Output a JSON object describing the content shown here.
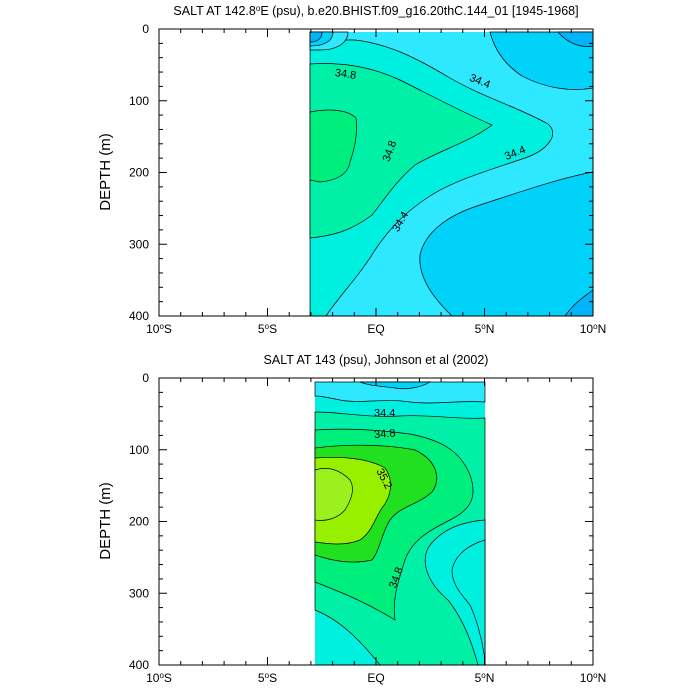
{
  "chart_data": [
    {
      "type": "contour",
      "title_main": "SALT AT 142.8",
      "title_sup": "o",
      "title_rest": "E (psu), b.e20.BHIST.f09_g16.20thC.144_01 [1945-1968]",
      "xlabel": "",
      "ylabel": "DEPTH (m)",
      "xlim": [
        -10,
        10
      ],
      "ylim": [
        0,
        400
      ],
      "y_inverted": true,
      "data_extent_x": [
        -7,
        10
      ],
      "data_extent_y": [
        5,
        400
      ],
      "x_ticks": [
        {
          "value": -10,
          "main": "10",
          "sup": "o",
          "suffix": "S"
        },
        {
          "value": -5,
          "main": "5",
          "sup": "o",
          "suffix": "S"
        },
        {
          "value": 0,
          "main": "EQ",
          "sup": "",
          "suffix": ""
        },
        {
          "value": 5,
          "main": "5",
          "sup": "o",
          "suffix": "N"
        },
        {
          "value": 10,
          "main": "10",
          "sup": "o",
          "suffix": "N"
        }
      ],
      "y_ticks": [
        {
          "value": 0,
          "label": "0"
        },
        {
          "value": 100,
          "label": "100"
        },
        {
          "value": 200,
          "label": "200"
        },
        {
          "value": 300,
          "label": "300"
        },
        {
          "value": 400,
          "label": "400"
        }
      ],
      "levels": [
        {
          "value": 34.0,
          "color": "#00B4FA"
        },
        {
          "value": 34.2,
          "color": "#00D2FA"
        },
        {
          "value": 34.4,
          "color": "#2DE8FF"
        },
        {
          "value": 34.6,
          "color": "#00F0E0"
        },
        {
          "value": 34.8,
          "color": "#00F0A8"
        },
        {
          "value": 35.0,
          "color": "#00EE7C"
        },
        {
          "value": 35.2,
          "color": "#20E020"
        }
      ],
      "contour_labels": [
        {
          "text": "34.8",
          "x": -1.4,
          "y": 62,
          "angle": 8
        },
        {
          "text": "34.4",
          "x": 4.8,
          "y": 72,
          "angle": 22
        },
        {
          "text": "34.8",
          "x": 0.6,
          "y": 170,
          "angle": -70
        },
        {
          "text": "34.4",
          "x": 6.4,
          "y": 172,
          "angle": -22
        },
        {
          "text": "34.4",
          "x": 1.1,
          "y": 268,
          "angle": -60
        }
      ]
    },
    {
      "type": "contour",
      "title_main": "SALT AT 143 (psu), Johnson et al (2002)",
      "title_sup": "",
      "title_rest": "",
      "xlabel": "",
      "ylabel": "DEPTH (m)",
      "xlim": [
        -10,
        10
      ],
      "ylim": [
        0,
        400
      ],
      "y_inverted": true,
      "data_extent_x": [
        -2.8,
        5
      ],
      "data_extent_y": [
        5,
        400
      ],
      "x_ticks": [
        {
          "value": -10,
          "main": "10",
          "sup": "o",
          "suffix": "S"
        },
        {
          "value": -5,
          "main": "5",
          "sup": "o",
          "suffix": "S"
        },
        {
          "value": 0,
          "main": "EQ",
          "sup": "",
          "suffix": ""
        },
        {
          "value": 5,
          "main": "5",
          "sup": "o",
          "suffix": "N"
        },
        {
          "value": 10,
          "main": "10",
          "sup": "o",
          "suffix": "N"
        }
      ],
      "y_ticks": [
        {
          "value": 0,
          "label": "0"
        },
        {
          "value": 100,
          "label": "100"
        },
        {
          "value": 200,
          "label": "200"
        },
        {
          "value": 300,
          "label": "300"
        },
        {
          "value": 400,
          "label": "400"
        }
      ],
      "levels": [
        {
          "value": 34.2,
          "color": "#00D2FA"
        },
        {
          "value": 34.4,
          "color": "#2DE8FF"
        },
        {
          "value": 34.6,
          "color": "#00F0E0"
        },
        {
          "value": 34.8,
          "color": "#00F0A8"
        },
        {
          "value": 35.0,
          "color": "#00EE7C"
        },
        {
          "value": 35.2,
          "color": "#20E020"
        },
        {
          "value": 35.4,
          "color": "#96F000"
        }
      ],
      "contour_labels": [
        {
          "text": "34.4",
          "x": 0.4,
          "y": 48,
          "angle": 0
        },
        {
          "text": "34.8",
          "x": 0.4,
          "y": 77,
          "angle": -5
        },
        {
          "text": "35.2",
          "x": 0.4,
          "y": 140,
          "angle": 62
        },
        {
          "text": "34.8",
          "x": 0.9,
          "y": 278,
          "angle": -70
        }
      ]
    }
  ]
}
